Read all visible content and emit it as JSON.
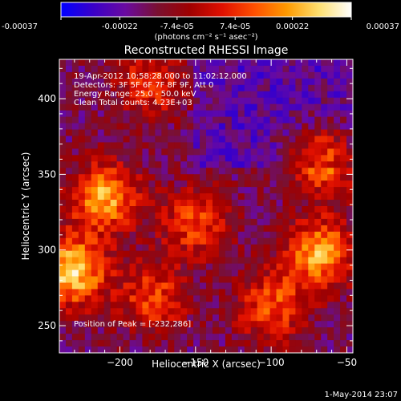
{
  "colorbar": {
    "tick_values": [
      -0.00037,
      -0.00022,
      -7.4e-05,
      7.4e-05,
      0.00022,
      0.00037
    ],
    "tick_labels": [
      "-0.00037",
      "-0.00022",
      "-7.4e-05",
      "7.4e-05",
      "0.00022",
      "0.00037"
    ],
    "range": [
      -0.00037,
      0.00037
    ],
    "unit_label": "(photons cm⁻² s⁻¹ asec⁻²)"
  },
  "colormap_stops": [
    "#0000ff",
    "#3a00c8",
    "#6a0aa0",
    "#7a1030",
    "#a00000",
    "#e01000",
    "#ff5000",
    "#ff9a00",
    "#ffe070",
    "#ffffff"
  ],
  "chart_data": {
    "type": "heatmap",
    "title": "Reconstructed RHESSI Image",
    "xlabel": "Heliocentric X (arcsec)",
    "ylabel": "Heliocentric Y (arcsec)",
    "xlim": [
      -240,
      -46
    ],
    "ylim": [
      232,
      426
    ],
    "xticks": [
      -200,
      -150,
      -100,
      -50
    ],
    "xtick_labels": [
      "−200",
      "−150",
      "−100",
      "−50"
    ],
    "yticks": [
      250,
      300,
      350,
      400
    ],
    "ytick_labels": [
      "250",
      "300",
      "350",
      "400"
    ],
    "peak": [
      -232,
      286
    ],
    "annotations": {
      "time": "19-Apr-2012 10:58:28.000 to 11:02:12.000",
      "detectors": "Detectors: 3F 5F 6F 7F 8F 9F, Att 0",
      "energy": "Energy Range: 25.0 - 50.0 keV",
      "clean": "Clean    Total counts: 4.23E+03",
      "peak_text": "Position of Peak = [-232,286]"
    },
    "hotspots": [
      {
        "x": -232,
        "y": 286,
        "intensity": 1.0
      },
      {
        "x": -210,
        "y": 335,
        "intensity": 0.85
      },
      {
        "x": -68,
        "y": 298,
        "intensity": 0.85
      },
      {
        "x": -66,
        "y": 360,
        "intensity": 0.7
      },
      {
        "x": -150,
        "y": 318,
        "intensity": 0.55
      },
      {
        "x": -100,
        "y": 262,
        "intensity": 0.6
      },
      {
        "x": -180,
        "y": 410,
        "intensity": 0.5
      },
      {
        "x": -178,
        "y": 268,
        "intensity": 0.55
      }
    ]
  },
  "footer": {
    "date": "1-May-2014 23:07"
  }
}
